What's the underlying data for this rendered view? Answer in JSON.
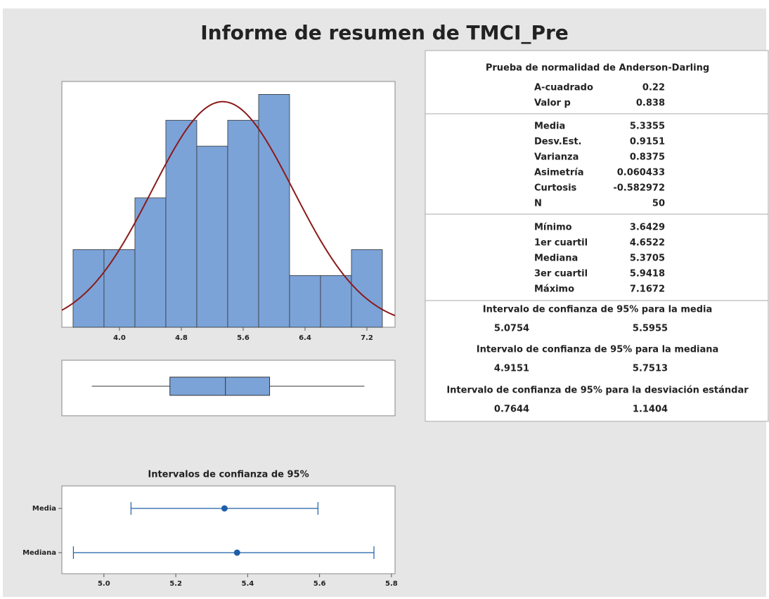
{
  "title": "Informe de resumen de TMCI_Pre",
  "chart_data": [
    {
      "type": "histogram",
      "bins": [
        3.4,
        3.8,
        4.2,
        4.6,
        5.0,
        5.4,
        5.8,
        6.2,
        6.6,
        7.0,
        7.4
      ],
      "counts": [
        3,
        3,
        5,
        8,
        7,
        8,
        9,
        2,
        2,
        3
      ],
      "color": "#7ba3d8",
      "curve_color": "#8b1a1a",
      "xlim": [
        3.255,
        7.564
      ],
      "xticks": [
        {
          "value": 4,
          "label": "4.0"
        },
        4.8,
        5.6,
        6.4,
        7.2
      ],
      "ylim": [
        0,
        9.5
      ]
    },
    {
      "type": "interval",
      "title": "Intervalos de confianza de 95%",
      "categories": [
        "Media",
        "Mediana"
      ],
      "color": "#1f5fa8",
      "xlim": [
        4.883,
        5.81
      ],
      "xticks": [
        {
          "value": 5,
          "label": "5.0"
        },
        5.2,
        5.4,
        5.6,
        5.8
      ]
    }
  ],
  "stats": {
    "normality": {
      "title": "Prueba de normalidad de Anderson-Darling",
      "rows": [
        {
          "label": "A-cuadrado",
          "value": 0.22
        },
        {
          "label": "Valor p",
          "value": 0.838
        }
      ]
    },
    "descriptive": {
      "rows": [
        {
          "label": "Media",
          "value": 5.3355
        },
        {
          "label": "Desv.Est.",
          "value": 0.9151
        },
        {
          "label": "Varianza",
          "value": 0.8375
        },
        {
          "label": "Asimetría",
          "value": 0.060433
        },
        {
          "label": "Curtosis",
          "value": -0.582972
        },
        {
          "label": "N",
          "value": 50
        }
      ]
    },
    "quartiles": {
      "rows": [
        {
          "label": "Mínimo",
          "value": 3.6429
        },
        {
          "label": "1er cuartil",
          "value": 4.6522
        },
        {
          "label": "Mediana",
          "value": 5.3705
        },
        {
          "label": "3er cuartil",
          "value": 5.9418
        },
        {
          "label": "Máximo",
          "value": 7.1672
        }
      ]
    },
    "ci_mean": {
      "title": "Intervalo de confianza de 95% para la media",
      "lower": 5.0754,
      "upper": 5.5955
    },
    "ci_median": {
      "title": "Intervalo de confianza de 95% para la mediana",
      "lower": 4.9151,
      "upper": 5.7513
    },
    "ci_sd": {
      "title": "Intervalo de confianza de 95% para la desviación estándar",
      "lower": 0.7644,
      "upper": 1.1404
    }
  }
}
